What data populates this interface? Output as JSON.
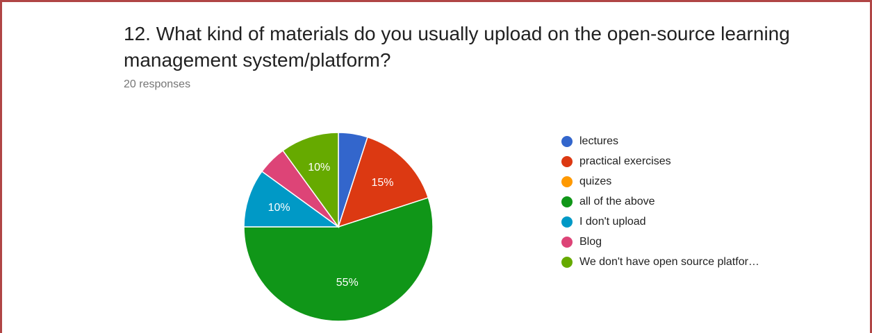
{
  "question": {
    "title": "12. What kind of materials do you usually upload on the open-source learning management system/platform?",
    "responses": "20 responses"
  },
  "chart_data": {
    "type": "pie",
    "categories": [
      "lectures",
      "practical exercises",
      "quizes",
      "all of the above",
      "I don't upload",
      "Blog",
      "We don't have open source platfor…"
    ],
    "values": [
      5,
      15,
      0,
      55,
      10,
      5,
      10
    ],
    "data_labels": [
      "",
      "15%",
      "",
      "55%",
      "10%",
      "",
      "10%"
    ],
    "colors": [
      "#3366cc",
      "#dc3912",
      "#ff9900",
      "#109618",
      "#0099c6",
      "#dd4477",
      "#66aa00"
    ],
    "legend_position": "right"
  }
}
